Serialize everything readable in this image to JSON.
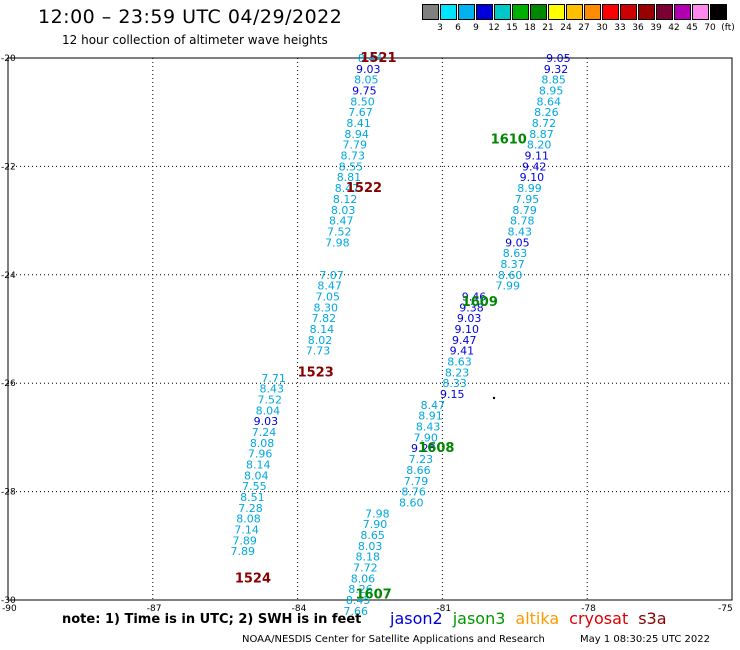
{
  "title": "12:00 – 23:59 UTC 04/29/2022",
  "subtitle": "12 hour collection of altimeter wave heights",
  "color_scale": {
    "labels": [
      "3",
      "6",
      "9",
      "12",
      "15",
      "18",
      "21",
      "24",
      "27",
      "30",
      "33",
      "36",
      "39",
      "42",
      "45",
      "70",
      "(ft)"
    ],
    "colors": [
      "#808080",
      "#00e5ff",
      "#00b2ee",
      "#0000dd",
      "#00c8c8",
      "#00b000",
      "#008800",
      "#ffff00",
      "#ffc000",
      "#ff8c00",
      "#ff0000",
      "#cc0000",
      "#990000",
      "#7a0033",
      "#b000b0",
      "#ff88ee",
      "#000000"
    ]
  },
  "axes": {
    "lat_labels": [
      "-20",
      "-22",
      "-24",
      "-26",
      "-28",
      "-30"
    ],
    "lon_labels": [
      "-90",
      "-87",
      "-84",
      "-81",
      "-78",
      "-75"
    ]
  },
  "chart_data": {
    "type": "scatter",
    "xlim": [
      -90,
      -75
    ],
    "ylim": [
      -30,
      -20
    ],
    "series": [
      {
        "name": "1521",
        "name_pos": [
          -82.7,
          -20.0
        ],
        "points": [
          [
            -82.75,
            -20.0,
            "8.44"
          ],
          [
            -82.79,
            -20.2,
            "9.03"
          ],
          [
            -82.83,
            -20.4,
            "8.05"
          ],
          [
            -82.87,
            -20.6,
            "9.75"
          ],
          [
            -82.91,
            -20.8,
            "8.50"
          ],
          [
            -82.95,
            -21.0,
            "7.67"
          ],
          [
            -82.99,
            -21.2,
            "8.41"
          ],
          [
            -83.03,
            -21.4,
            "8.94"
          ],
          [
            -83.07,
            -21.6,
            "7.79"
          ],
          [
            -83.11,
            -21.8,
            "8.73"
          ],
          [
            -83.15,
            -22.0,
            "8.55"
          ],
          [
            -83.19,
            -22.2,
            "8.81"
          ],
          [
            -83.23,
            -22.4,
            "8.47"
          ],
          [
            -83.27,
            -22.6,
            "8.12"
          ],
          [
            -83.31,
            -22.8,
            "8.03"
          ],
          [
            -83.35,
            -23.0,
            "8.47"
          ],
          [
            -83.39,
            -23.2,
            "7.52"
          ],
          [
            -83.43,
            -23.4,
            "7.98"
          ]
        ]
      },
      {
        "name": "1522",
        "name_pos": [
          -83.0,
          -22.4
        ],
        "points": [
          [
            -83.55,
            -24.0,
            "7.07"
          ],
          [
            -83.59,
            -24.2,
            "8.47"
          ],
          [
            -83.63,
            -24.4,
            "7.05"
          ],
          [
            -83.67,
            -24.6,
            "8.30"
          ],
          [
            -83.71,
            -24.8,
            "7.82"
          ],
          [
            -83.75,
            -25.0,
            "8.14"
          ],
          [
            -83.79,
            -25.2,
            "8.02"
          ],
          [
            -83.83,
            -25.4,
            "7.73"
          ]
        ]
      },
      {
        "name": "1523",
        "name_pos": [
          -84.0,
          -25.8
        ],
        "points": [
          [
            -84.75,
            -25.9,
            "7.71"
          ],
          [
            -84.79,
            -26.1,
            "8.43"
          ],
          [
            -84.83,
            -26.3,
            "7.52"
          ],
          [
            -84.87,
            -26.5,
            "8.04"
          ],
          [
            -84.91,
            -26.7,
            "9.03"
          ],
          [
            -84.95,
            -26.9,
            "7.24"
          ],
          [
            -84.99,
            -27.1,
            "8.08"
          ],
          [
            -85.03,
            -27.3,
            "7.96"
          ],
          [
            -85.07,
            -27.5,
            "8.14"
          ],
          [
            -85.11,
            -27.7,
            "8.04"
          ],
          [
            -85.15,
            -27.9,
            "7.55"
          ],
          [
            -85.19,
            -28.1,
            "8.51"
          ],
          [
            -85.23,
            -28.3,
            "7.28"
          ],
          [
            -85.27,
            -28.5,
            "8.08"
          ],
          [
            -85.31,
            -28.7,
            "7.14"
          ],
          [
            -85.35,
            -28.9,
            "7.89"
          ],
          [
            -85.39,
            -29.1,
            "7.89"
          ]
        ]
      },
      {
        "name": "1524",
        "name_pos": [
          -85.3,
          -29.6
        ],
        "points": []
      },
      {
        "name": "1610",
        "name_pos": [
          -80.0,
          -21.5
        ],
        "points": [
          [
            -78.85,
            -20.0,
            "9.05"
          ],
          [
            -78.9,
            -20.2,
            "9.32"
          ],
          [
            -78.95,
            -20.4,
            "8.85"
          ],
          [
            -79.0,
            -20.6,
            "8.95"
          ],
          [
            -79.05,
            -20.8,
            "8.64"
          ],
          [
            -79.1,
            -21.0,
            "8.26"
          ],
          [
            -79.15,
            -21.2,
            "8.72"
          ],
          [
            -79.2,
            -21.4,
            "8.87"
          ],
          [
            -79.25,
            -21.6,
            "8.20"
          ],
          [
            -79.3,
            -21.8,
            "9.11"
          ],
          [
            -79.35,
            -22.0,
            "9.42"
          ],
          [
            -79.4,
            -22.2,
            "9.10"
          ],
          [
            -79.45,
            -22.4,
            "8.99"
          ],
          [
            -79.5,
            -22.6,
            "7.95"
          ],
          [
            -79.55,
            -22.8,
            "8.79"
          ],
          [
            -79.6,
            -23.0,
            "8.78"
          ],
          [
            -79.65,
            -23.2,
            "8.43"
          ],
          [
            -79.7,
            -23.4,
            "9.05"
          ],
          [
            -79.75,
            -23.6,
            "8.63"
          ],
          [
            -79.8,
            -23.8,
            "8.37"
          ],
          [
            -79.85,
            -24.0,
            "8.60"
          ],
          [
            -79.9,
            -24.2,
            "7.99"
          ]
        ]
      },
      {
        "name": "1609",
        "name_pos": [
          -80.6,
          -24.5
        ],
        "points": [
          [
            -80.6,
            -24.4,
            "9.46"
          ],
          [
            -80.65,
            -24.6,
            "9.38"
          ],
          [
            -80.7,
            -24.8,
            "9.03"
          ],
          [
            -80.75,
            -25.0,
            "9.10"
          ],
          [
            -80.8,
            -25.2,
            "9.47"
          ],
          [
            -80.85,
            -25.4,
            "9.41"
          ],
          [
            -80.9,
            -25.6,
            "8.63"
          ],
          [
            -80.95,
            -25.8,
            "8.23"
          ],
          [
            -81.0,
            -26.0,
            "8.33"
          ],
          [
            -81.05,
            -26.2,
            "9.15"
          ]
        ]
      },
      {
        "name": "1608",
        "name_pos": [
          -81.5,
          -27.2
        ],
        "points": [
          [
            -81.45,
            -26.4,
            "8.47"
          ],
          [
            -81.5,
            -26.6,
            "8.91"
          ],
          [
            -81.55,
            -26.8,
            "8.43"
          ],
          [
            -81.6,
            -27.0,
            "7.90"
          ],
          [
            -81.65,
            -27.2,
            "9.28"
          ],
          [
            -81.7,
            -27.4,
            "7.23"
          ],
          [
            -81.75,
            -27.6,
            "8.66"
          ],
          [
            -81.8,
            -27.8,
            "7.79"
          ],
          [
            -81.85,
            -28.0,
            "8.76"
          ],
          [
            -81.9,
            -28.2,
            "8.60"
          ]
        ]
      },
      {
        "name": "1607",
        "name_pos": [
          -82.8,
          -29.9
        ],
        "points": [
          [
            -82.6,
            -28.4,
            "7.98"
          ],
          [
            -82.65,
            -28.6,
            "7.90"
          ],
          [
            -82.7,
            -28.8,
            "8.65"
          ],
          [
            -82.75,
            -29.0,
            "8.03"
          ],
          [
            -82.8,
            -29.2,
            "8.18"
          ],
          [
            -82.85,
            -29.4,
            "7.72"
          ],
          [
            -82.9,
            -29.6,
            "8.06"
          ],
          [
            -82.95,
            -29.8,
            "8.26"
          ],
          [
            -83.0,
            -30.0,
            "8.45"
          ],
          [
            -83.05,
            -30.2,
            "7.66"
          ]
        ]
      }
    ]
  },
  "note": "note:  1) Time is in UTC; 2) SWH is in feet",
  "satellites": [
    {
      "name": "jason2",
      "color": "#0000dd"
    },
    {
      "name": "jason3",
      "color": "#009900"
    },
    {
      "name": "altika",
      "color": "#ff9900"
    },
    {
      "name": "cryosat",
      "color": "#dd0000"
    },
    {
      "name": "s3a",
      "color": "#880000"
    }
  ],
  "credit": "NOAA/NESDIS Center for Satellite Applications and Research",
  "timestamp": "May  1 08:30:25 UTC 2022"
}
